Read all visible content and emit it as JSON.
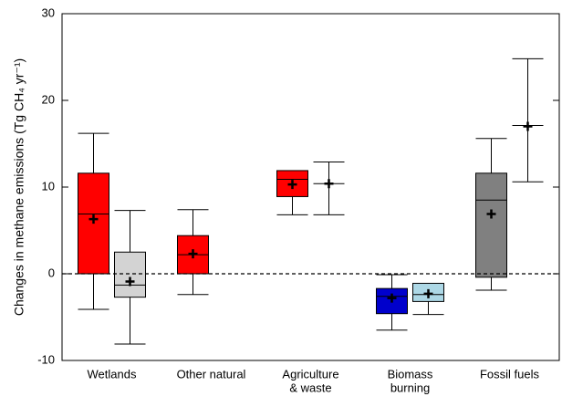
{
  "chart_data": {
    "type": "box",
    "ylabel": "Changes in methane emissions (Tg CH₄ yr⁻¹)",
    "ylim": [
      -10,
      30
    ],
    "yticks": [
      -10,
      0,
      10,
      20,
      30
    ],
    "reference_line": 0,
    "groups": [
      {
        "category": [
          "Wetlands"
        ],
        "boxes": [
          {
            "color": "#ff0000",
            "whisker_low": -4.1,
            "q1": 0,
            "median": 6.9,
            "q3": 11.6,
            "whisker_high": 16.2,
            "mean": 6.3
          },
          {
            "color": "#d3d3d3",
            "whisker_low": -8.1,
            "q1": -2.7,
            "median": -1.3,
            "q3": 2.5,
            "whisker_high": 7.3,
            "mean": -0.9
          }
        ]
      },
      {
        "category": [
          "Other natural"
        ],
        "boxes": [
          {
            "color": "#ff0000",
            "whisker_low": -2.4,
            "q1": 0,
            "median": 2.2,
            "q3": 4.4,
            "whisker_high": 7.4,
            "mean": 2.3
          }
        ]
      },
      {
        "category": [
          "Agriculture",
          "& waste"
        ],
        "boxes": [
          {
            "color": "#ff0000",
            "whisker_low": 6.8,
            "q1": 8.9,
            "median": 10.9,
            "q3": 11.9,
            "whisker_high": 11.9,
            "mean": 10.3
          },
          {
            "whisker_low": 6.8,
            "median": 10.4,
            "whisker_high": 12.9,
            "mean": 10.4
          }
        ]
      },
      {
        "category": [
          "Biomass",
          "burning"
        ],
        "boxes": [
          {
            "color": "#0000cc",
            "whisker_low": -6.5,
            "q1": -4.6,
            "median": -2.6,
            "q3": -1.7,
            "whisker_high": -0.1,
            "mean": -2.8
          },
          {
            "color": "#add8e6",
            "whisker_low": -4.7,
            "q1": -3.2,
            "median": -2.4,
            "q3": -1.1,
            "whisker_high": -1.1,
            "mean": -2.3
          }
        ]
      },
      {
        "category": [
          "Fossil fuels"
        ],
        "boxes": [
          {
            "color": "#808080",
            "whisker_low": -1.9,
            "q1": -0.4,
            "median": 8.5,
            "q3": 11.6,
            "whisker_high": 15.6,
            "mean": 6.9
          },
          {
            "whisker_low": 10.6,
            "median": 17.1,
            "whisker_high": 24.8,
            "mean": 17.0
          }
        ]
      }
    ]
  }
}
